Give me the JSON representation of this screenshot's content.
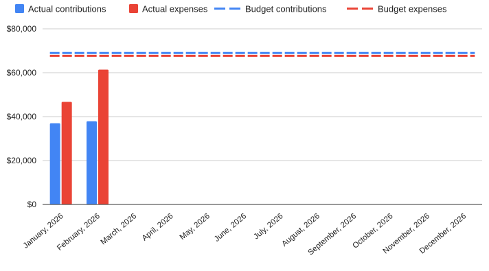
{
  "colors": {
    "contributions": "#4285f4",
    "expenses": "#ea4335",
    "grid": "#cccccc",
    "axis": "#333333"
  },
  "chart_data": {
    "type": "bar",
    "title": "",
    "xlabel": "",
    "ylabel": "",
    "ylim": [
      0,
      80000
    ],
    "yticks": [
      0,
      20000,
      40000,
      60000,
      80000
    ],
    "ytick_labels": [
      "$0",
      "$20,000",
      "$40,000",
      "$60,000",
      "$80,000"
    ],
    "grid": true,
    "legend_position": "top-left",
    "categories": [
      "January, 2026",
      "February, 2026",
      "March, 2026",
      "April, 2026",
      "May, 2026",
      "June, 2026",
      "July, 2026",
      "August, 2026",
      "September, 2026",
      "October, 2026",
      "November, 2026",
      "December, 2026"
    ],
    "series": [
      {
        "name": "Actual contributions",
        "kind": "bar",
        "color": "#4285f4",
        "values": [
          37000,
          37900,
          null,
          null,
          null,
          null,
          null,
          null,
          null,
          null,
          null,
          null
        ]
      },
      {
        "name": "Actual expenses",
        "kind": "bar",
        "color": "#ea4335",
        "values": [
          46700,
          61400,
          null,
          null,
          null,
          null,
          null,
          null,
          null,
          null,
          null,
          null
        ]
      },
      {
        "name": "Budget contributions",
        "kind": "dashed-line",
        "color": "#4285f4",
        "values": [
          69000,
          69000,
          69000,
          69000,
          69000,
          69000,
          69000,
          69000,
          69000,
          69000,
          69000,
          69000
        ]
      },
      {
        "name": "Budget expenses",
        "kind": "dashed-line",
        "color": "#ea4335",
        "values": [
          67700,
          67700,
          67700,
          67700,
          67700,
          67700,
          67700,
          67700,
          67700,
          67700,
          67700,
          67700
        ]
      }
    ]
  }
}
